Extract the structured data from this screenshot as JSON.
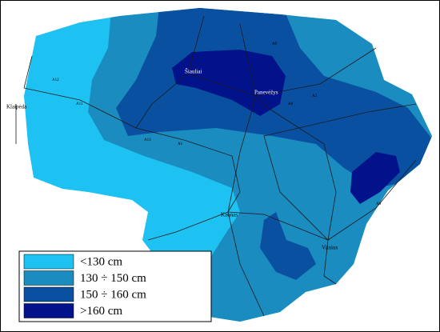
{
  "legend": [
    {
      "label": "<130 cm",
      "color": "#1ec2f2"
    },
    {
      "label": "130 ÷ 150 cm",
      "color": "#1a8cc0"
    },
    {
      "label": "150 ÷ 160 cm",
      "color": "#0a50a0"
    },
    {
      "label": ">160 cm",
      "color": "#02128a"
    }
  ],
  "cities": [
    {
      "label": "Šiauliai"
    },
    {
      "label": "Panevėžys"
    },
    {
      "label": "Klaipėda"
    },
    {
      "label": "Kaunas"
    },
    {
      "label": "Vilnius"
    }
  ],
  "roads": [
    {
      "label": "A1"
    },
    {
      "label": "A2"
    },
    {
      "label": "A11"
    },
    {
      "label": "A12"
    },
    {
      "label": "A13"
    },
    {
      "label": "A6"
    },
    {
      "label": "A8"
    },
    {
      "label": "A9"
    }
  ]
}
